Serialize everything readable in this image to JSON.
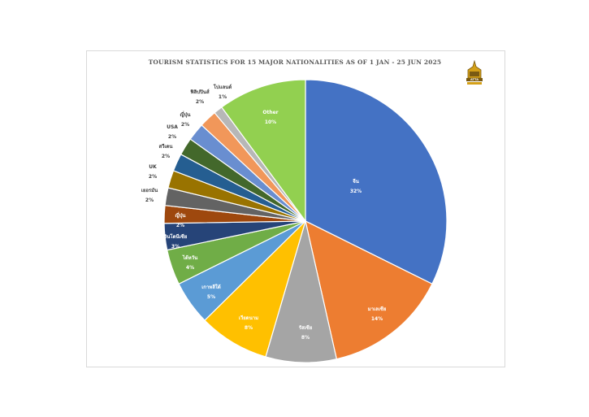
{
  "chart_data": {
    "type": "pie",
    "title": "TOURISM STATISTICS FOR 15 MAJOR NATIONALITIES AS OF 1 JAN - 25 JUN 2025",
    "slices": [
      {
        "label": "จีน",
        "value": 32,
        "pct": "32%",
        "color": "#4472c4"
      },
      {
        "label": "มาเลเซีย",
        "value": 14,
        "pct": "14%",
        "color": "#ed7d31"
      },
      {
        "label": "รัสเซีย",
        "value": 8,
        "pct": "8%",
        "color": "#a5a5a5"
      },
      {
        "label": "เวียดนาม",
        "value": 8,
        "pct": "8%",
        "color": "#ffc000"
      },
      {
        "label": "เกาหลีใต้",
        "value": 5,
        "pct": "5%",
        "color": "#5b9bd5"
      },
      {
        "label": "ไต้หวัน",
        "value": 4,
        "pct": "4%",
        "color": "#70ad47"
      },
      {
        "label": "อินโดนีเซีย",
        "value": 3,
        "pct": "3%",
        "color": "#264478"
      },
      {
        "label": "ญี่ปุ่น",
        "value": 2,
        "pct": "2%",
        "color": "#9e480e"
      },
      {
        "label": "เยอรมัน",
        "value": 2,
        "pct": "2%",
        "color": "#636363"
      },
      {
        "label": "UK",
        "value": 2,
        "pct": "2%",
        "color": "#997300"
      },
      {
        "label": "สวีเดน",
        "value": 2,
        "pct": "2%",
        "color": "#255e91"
      },
      {
        "label": "USA",
        "value": 2,
        "pct": "2%",
        "color": "#43682b"
      },
      {
        "label": "ญี่ปุ่น",
        "value": 2,
        "pct": "2%",
        "color": "#698ed0"
      },
      {
        "label": "ฟิลิปปินส์",
        "value": 2,
        "pct": "2%",
        "color": "#f1975a"
      },
      {
        "label": "โปแลนด์",
        "value": 1,
        "pct": "1%",
        "color": "#b7b7b7"
      },
      {
        "label": "Other",
        "value": 10,
        "pct": "10%",
        "color": "#92d050"
      }
    ]
  },
  "logo": {
    "text": "ATTA",
    "color": "#7a5a12",
    "accent": "#d4a017"
  }
}
